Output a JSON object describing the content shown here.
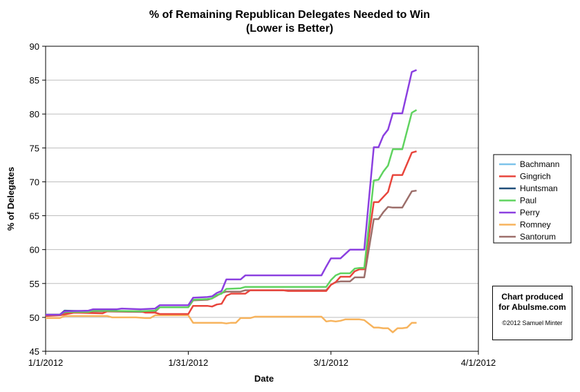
{
  "chart_data": {
    "type": "line",
    "title": "% of Remaining Republican Delegates Needed to Win",
    "subtitle": "(Lower is Better)",
    "xlabel": "Date",
    "ylabel": "% of Delegates",
    "x_ticks": [
      "1/1/2012",
      "1/31/2012",
      "3/1/2012",
      "4/1/2012"
    ],
    "x_range": [
      "2012-01-01",
      "2012-04-01"
    ],
    "ylim": [
      45,
      90
    ],
    "y_ticks": [
      45,
      50,
      55,
      60,
      65,
      70,
      75,
      80,
      85,
      90
    ],
    "grid": "horizontal",
    "legend_position": "right",
    "series": [
      {
        "name": "Bachmann",
        "color": "#7cc3ea",
        "points": [
          [
            "2012-01-01",
            50.4
          ],
          [
            "2012-01-04",
            50.4
          ]
        ]
      },
      {
        "name": "Gingrich",
        "color": "#e8453c",
        "points": [
          [
            "2012-01-01",
            50.2
          ],
          [
            "2012-01-04",
            50.3
          ],
          [
            "2012-01-07",
            50.7
          ],
          [
            "2012-01-13",
            50.6
          ],
          [
            "2012-01-14",
            50.9
          ],
          [
            "2012-01-21",
            50.9
          ],
          [
            "2012-01-22",
            50.7
          ],
          [
            "2012-01-24",
            50.7
          ],
          [
            "2012-01-25",
            50.5
          ],
          [
            "2012-01-31",
            50.5
          ],
          [
            "2012-02-01",
            51.7
          ],
          [
            "2012-02-04",
            51.7
          ],
          [
            "2012-02-05",
            51.6
          ],
          [
            "2012-02-06",
            51.9
          ],
          [
            "2012-02-07",
            52.0
          ],
          [
            "2012-02-08",
            53.2
          ],
          [
            "2012-02-09",
            53.5
          ],
          [
            "2012-02-12",
            53.5
          ],
          [
            "2012-02-13",
            54.0
          ],
          [
            "2012-02-20",
            54.0
          ],
          [
            "2012-02-21",
            53.9
          ],
          [
            "2012-02-29",
            53.9
          ],
          [
            "2012-03-01",
            54.8
          ],
          [
            "2012-03-02",
            55.2
          ],
          [
            "2012-03-03",
            56.0
          ],
          [
            "2012-03-05",
            56.0
          ],
          [
            "2012-03-06",
            56.8
          ],
          [
            "2012-03-07",
            57.1
          ],
          [
            "2012-03-08",
            57.1
          ],
          [
            "2012-03-10",
            67.0
          ],
          [
            "2012-03-11",
            67.0
          ],
          [
            "2012-03-13",
            68.5
          ],
          [
            "2012-03-14",
            71.0
          ],
          [
            "2012-03-16",
            71.0
          ],
          [
            "2012-03-18",
            74.3
          ],
          [
            "2012-03-19",
            74.5
          ]
        ]
      },
      {
        "name": "Huntsman",
        "color": "#1f4e79",
        "points": [
          [
            "2012-01-01",
            50.4
          ],
          [
            "2012-01-04",
            50.4
          ],
          [
            "2012-01-05",
            51.0
          ],
          [
            "2012-01-10",
            50.9
          ],
          [
            "2012-01-11",
            51.1
          ],
          [
            "2012-01-16",
            51.1
          ]
        ]
      },
      {
        "name": "Paul",
        "color": "#5fd35f",
        "points": [
          [
            "2012-01-01",
            50.4
          ],
          [
            "2012-01-04",
            50.4
          ],
          [
            "2012-01-05",
            50.8
          ],
          [
            "2012-01-10",
            50.8
          ],
          [
            "2012-01-11",
            51.0
          ],
          [
            "2012-01-21",
            50.9
          ],
          [
            "2012-01-24",
            51.0
          ],
          [
            "2012-01-25",
            51.5
          ],
          [
            "2012-01-31",
            51.5
          ],
          [
            "2012-02-01",
            52.6
          ],
          [
            "2012-02-04",
            52.7
          ],
          [
            "2012-02-05",
            52.8
          ],
          [
            "2012-02-06",
            53.3
          ],
          [
            "2012-02-07",
            53.5
          ],
          [
            "2012-02-08",
            54.2
          ],
          [
            "2012-02-11",
            54.3
          ],
          [
            "2012-02-12",
            54.5
          ],
          [
            "2012-02-20",
            54.5
          ],
          [
            "2012-02-21",
            54.5
          ],
          [
            "2012-02-29",
            54.5
          ],
          [
            "2012-03-01",
            55.5
          ],
          [
            "2012-03-02",
            56.2
          ],
          [
            "2012-03-03",
            56.5
          ],
          [
            "2012-03-05",
            56.5
          ],
          [
            "2012-03-06",
            57.2
          ],
          [
            "2012-03-07",
            57.3
          ],
          [
            "2012-03-08",
            57.3
          ],
          [
            "2012-03-10",
            70.2
          ],
          [
            "2012-03-11",
            70.3
          ],
          [
            "2012-03-12",
            71.5
          ],
          [
            "2012-03-13",
            72.4
          ],
          [
            "2012-03-14",
            74.8
          ],
          [
            "2012-03-16",
            74.8
          ],
          [
            "2012-03-18",
            80.2
          ],
          [
            "2012-03-19",
            80.6
          ]
        ]
      },
      {
        "name": "Perry",
        "color": "#8b3fe0",
        "points": [
          [
            "2012-01-01",
            50.4
          ],
          [
            "2012-01-04",
            50.4
          ],
          [
            "2012-01-05",
            50.9
          ],
          [
            "2012-01-10",
            51.0
          ],
          [
            "2012-01-11",
            51.2
          ],
          [
            "2012-01-16",
            51.2
          ],
          [
            "2012-01-17",
            51.3
          ],
          [
            "2012-01-21",
            51.2
          ],
          [
            "2012-01-24",
            51.3
          ],
          [
            "2012-01-25",
            51.8
          ],
          [
            "2012-01-31",
            51.8
          ],
          [
            "2012-02-01",
            52.9
          ],
          [
            "2012-02-04",
            53.0
          ],
          [
            "2012-02-05",
            53.1
          ],
          [
            "2012-02-06",
            53.6
          ],
          [
            "2012-02-07",
            53.9
          ],
          [
            "2012-02-08",
            55.6
          ],
          [
            "2012-02-11",
            55.6
          ],
          [
            "2012-02-12",
            56.2
          ],
          [
            "2012-02-20",
            56.2
          ],
          [
            "2012-02-21",
            56.2
          ],
          [
            "2012-02-28",
            56.2
          ],
          [
            "2012-02-29",
            57.5
          ],
          [
            "2012-03-01",
            58.7
          ],
          [
            "2012-03-02",
            58.7
          ],
          [
            "2012-03-03",
            58.7
          ],
          [
            "2012-03-05",
            60.0
          ],
          [
            "2012-03-06",
            60.0
          ],
          [
            "2012-03-07",
            60.0
          ],
          [
            "2012-03-08",
            60.0
          ],
          [
            "2012-03-10",
            75.1
          ],
          [
            "2012-03-11",
            75.1
          ],
          [
            "2012-03-12",
            76.8
          ],
          [
            "2012-03-13",
            77.7
          ],
          [
            "2012-03-14",
            80.1
          ],
          [
            "2012-03-16",
            80.1
          ],
          [
            "2012-03-18",
            86.2
          ],
          [
            "2012-03-19",
            86.5
          ]
        ]
      },
      {
        "name": "Romney",
        "color": "#f7b35c",
        "points": [
          [
            "2012-01-01",
            49.9
          ],
          [
            "2012-01-04",
            49.9
          ],
          [
            "2012-01-05",
            50.2
          ],
          [
            "2012-01-14",
            50.2
          ],
          [
            "2012-01-15",
            50.0
          ],
          [
            "2012-01-20",
            50.0
          ],
          [
            "2012-01-22",
            49.9
          ],
          [
            "2012-01-23",
            49.9
          ],
          [
            "2012-01-24",
            50.3
          ],
          [
            "2012-01-31",
            50.3
          ],
          [
            "2012-02-01",
            49.2
          ],
          [
            "2012-02-04",
            49.2
          ],
          [
            "2012-02-07",
            49.2
          ],
          [
            "2012-02-08",
            49.1
          ],
          [
            "2012-02-09",
            49.2
          ],
          [
            "2012-02-10",
            49.2
          ],
          [
            "2012-02-11",
            49.9
          ],
          [
            "2012-02-13",
            49.9
          ],
          [
            "2012-02-14",
            50.1
          ],
          [
            "2012-02-20",
            50.1
          ],
          [
            "2012-02-21",
            50.1
          ],
          [
            "2012-02-28",
            50.1
          ],
          [
            "2012-02-29",
            49.4
          ],
          [
            "2012-03-01",
            49.5
          ],
          [
            "2012-03-02",
            49.4
          ],
          [
            "2012-03-03",
            49.5
          ],
          [
            "2012-03-04",
            49.7
          ],
          [
            "2012-03-06",
            49.7
          ],
          [
            "2012-03-07",
            49.7
          ],
          [
            "2012-03-08",
            49.6
          ],
          [
            "2012-03-10",
            48.5
          ],
          [
            "2012-03-11",
            48.5
          ],
          [
            "2012-03-12",
            48.4
          ],
          [
            "2012-03-13",
            48.4
          ],
          [
            "2012-03-14",
            47.8
          ],
          [
            "2012-03-15",
            48.4
          ],
          [
            "2012-03-16",
            48.4
          ],
          [
            "2012-03-17",
            48.5
          ],
          [
            "2012-03-18",
            49.2
          ],
          [
            "2012-03-19",
            49.2
          ]
        ]
      },
      {
        "name": "Santorum",
        "color": "#9c6e6a",
        "points": [
          [
            "2012-01-01",
            50.4
          ],
          [
            "2012-01-04",
            50.4
          ],
          [
            "2012-01-05",
            50.7
          ],
          [
            "2012-01-10",
            50.7
          ],
          [
            "2012-01-11",
            50.9
          ],
          [
            "2012-01-21",
            50.8
          ],
          [
            "2012-01-24",
            50.8
          ],
          [
            "2012-01-25",
            51.5
          ],
          [
            "2012-01-31",
            51.5
          ],
          [
            "2012-02-01",
            52.5
          ],
          [
            "2012-02-04",
            52.6
          ],
          [
            "2012-02-05",
            52.8
          ],
          [
            "2012-02-06",
            53.2
          ],
          [
            "2012-02-07",
            53.6
          ],
          [
            "2012-02-08",
            53.8
          ],
          [
            "2012-02-11",
            53.8
          ],
          [
            "2012-02-12",
            54.0
          ],
          [
            "2012-02-20",
            54.0
          ],
          [
            "2012-02-21",
            54.0
          ],
          [
            "2012-02-29",
            54.0
          ],
          [
            "2012-03-01",
            54.8
          ],
          [
            "2012-03-02",
            55.2
          ],
          [
            "2012-03-03",
            55.3
          ],
          [
            "2012-03-05",
            55.3
          ],
          [
            "2012-03-06",
            55.9
          ],
          [
            "2012-03-07",
            55.9
          ],
          [
            "2012-03-08",
            55.9
          ],
          [
            "2012-03-10",
            64.5
          ],
          [
            "2012-03-11",
            64.5
          ],
          [
            "2012-03-12",
            65.5
          ],
          [
            "2012-03-13",
            66.3
          ],
          [
            "2012-03-14",
            66.2
          ],
          [
            "2012-03-16",
            66.2
          ],
          [
            "2012-03-18",
            68.6
          ],
          [
            "2012-03-19",
            68.7
          ]
        ]
      }
    ]
  },
  "credit": {
    "line1": "Chart produced",
    "line2": "for Abulsme.com",
    "copyright": "©2012 Samuel Minter"
  }
}
